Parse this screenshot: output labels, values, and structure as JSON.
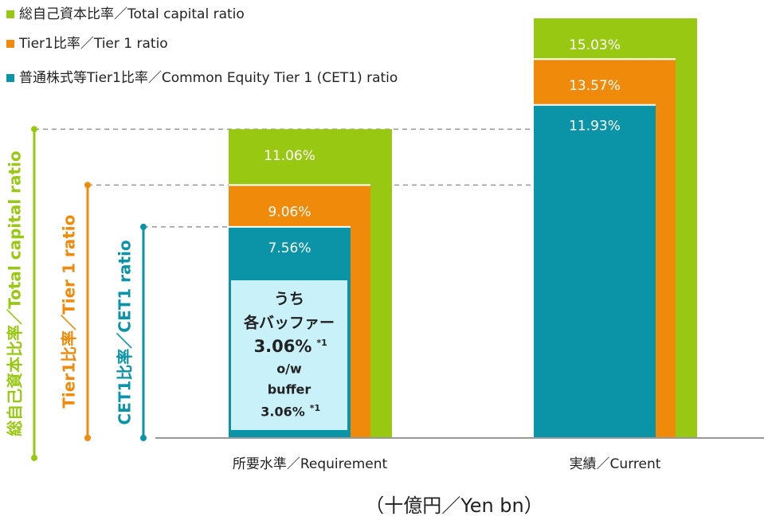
{
  "chart_data": {
    "type": "overlap-bar",
    "categories": [
      "所要水準／Requirement",
      "実績／Current"
    ],
    "series": [
      {
        "name": "総自己資本比率／Total capital ratio",
        "color": "#99c813",
        "values": [
          11.06,
          15.03
        ],
        "value_labels": [
          "11.06%",
          "15.03%"
        ]
      },
      {
        "name": "Tier1比率／Tier 1 ratio",
        "color": "#ef8a0a",
        "values": [
          9.06,
          13.57
        ],
        "value_labels": [
          "9.06%",
          "13.57%"
        ]
      },
      {
        "name": "普通株式等Tier1比率／Common Equity Tier 1 (CET1) ratio",
        "color": "#0b93a8",
        "values": [
          7.56,
          11.93
        ],
        "value_labels": [
          "7.56%",
          "11.93%"
        ]
      }
    ],
    "cet1_bracket_label": "CET1比率／CET1 ratio",
    "buffer_note": {
      "lines": [
        "うち",
        "各バッファー",
        "3.06%",
        "o/w",
        "buffer",
        "3.06%"
      ],
      "footnote_mark": "*1"
    },
    "unit_note": "（十億円／Yen bn）"
  }
}
